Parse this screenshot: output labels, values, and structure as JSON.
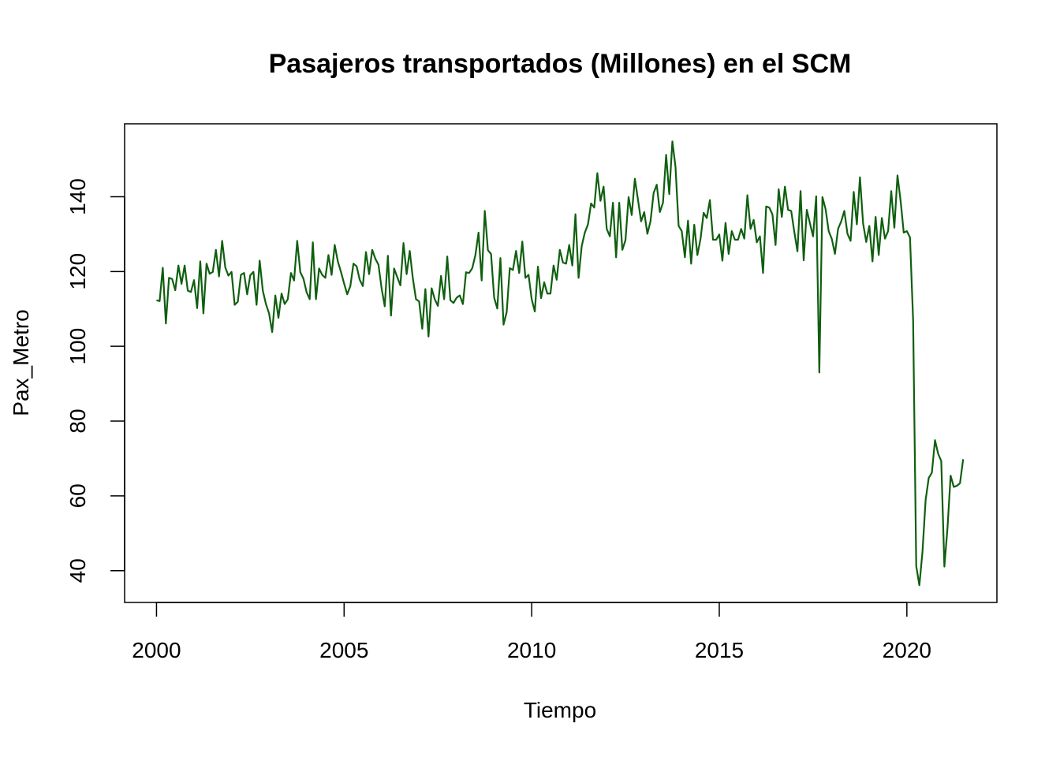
{
  "chart_data": {
    "type": "line",
    "title": "Pasajeros transportados (Millones) en el SCM",
    "xlabel": "Tiempo",
    "ylabel": "Pax_Metro",
    "xlim": [
      1999.15,
      2022.4
    ],
    "ylim": [
      31.5,
      159.5
    ],
    "x_ticks": [
      2000,
      2005,
      2010,
      2015,
      2020
    ],
    "y_ticks": [
      40,
      60,
      80,
      100,
      120,
      140
    ],
    "grid": false,
    "legend": "none",
    "line_color": "#0f5f0f",
    "frequency": 12,
    "start": [
      2000,
      1
    ],
    "series": [
      {
        "values": [
          112.3,
          112.1,
          121.0,
          106.1,
          118.3,
          118.0,
          115.0,
          121.6,
          116.7,
          121.6,
          114.9,
          114.5,
          117.7,
          110.2,
          122.7,
          108.8,
          122.1,
          119.4,
          119.9,
          125.8,
          118.7,
          128.2,
          121.1,
          118.9,
          119.9,
          111.1,
          111.9,
          119.1,
          119.6,
          113.9,
          119.0,
          119.9,
          111.1,
          122.9,
          114.9,
          111.3,
          108.8,
          103.8,
          113.6,
          107.6,
          114.1,
          111.3,
          112.6,
          119.6,
          117.6,
          128.2,
          119.8,
          118.1,
          114.5,
          112.6,
          127.8,
          112.6,
          120.8,
          119.1,
          118.3,
          124.4,
          119.1,
          127.1,
          122.7,
          119.9,
          116.8,
          113.9,
          116.1,
          122.1,
          121.4,
          117.8,
          116.1,
          125.2,
          119.3,
          125.8,
          123.4,
          121.8,
          115.5,
          110.7,
          124.2,
          108.2,
          120.8,
          118.5,
          116.3,
          127.6,
          119.3,
          125.5,
          118.1,
          112.6,
          112.0,
          104.7,
          115.3,
          102.6,
          115.5,
          112.6,
          110.8,
          118.8,
          112.6,
          124.0,
          112.3,
          111.6,
          113.0,
          113.6,
          111.3,
          119.8,
          119.6,
          120.9,
          124.4,
          130.4,
          117.6,
          136.2,
          125.7,
          124.7,
          113.0,
          110.1,
          123.6,
          105.8,
          109.1,
          120.9,
          120.4,
          125.5,
          119.6,
          128.0,
          118.3,
          119.1,
          112.6,
          109.3,
          121.3,
          112.9,
          117.1,
          114.1,
          114.1,
          121.6,
          117.8,
          125.8,
          122.4,
          122.1,
          127.1,
          121.6,
          135.3,
          118.3,
          126.8,
          130.4,
          132.6,
          138.2,
          137.1,
          146.3,
          138.9,
          142.7,
          131.4,
          129.4,
          138.4,
          123.8,
          138.4,
          125.8,
          128.4,
          139.9,
          135.1,
          144.8,
          139.2,
          133.4,
          135.9,
          130.1,
          133.4,
          141.0,
          143.2,
          135.9,
          138.4,
          151.2,
          140.7,
          154.8,
          148.0,
          132.2,
          130.8,
          123.8,
          133.6,
          122.1,
          132.5,
          124.4,
          128.7,
          135.7,
          134.3,
          139.1,
          128.5,
          128.5,
          129.9,
          122.9,
          133.0,
          124.7,
          130.8,
          128.5,
          128.5,
          131.4,
          128.8,
          140.4,
          131.4,
          133.8,
          127.8,
          129.4,
          119.6,
          137.4,
          137.1,
          135.3,
          127.1,
          142.0,
          134.6,
          142.7,
          136.5,
          136.2,
          130.6,
          125.4,
          141.5,
          123.0,
          136.5,
          132.9,
          129.4,
          140.1,
          93.0,
          139.9,
          136.7,
          130.8,
          128.7,
          124.7,
          131.4,
          133.4,
          136.2,
          130.1,
          128.2,
          141.3,
          132.6,
          145.2,
          132.9,
          127.9,
          132.2,
          122.7,
          134.6,
          124.4,
          134.3,
          128.8,
          130.8,
          141.5,
          131.7,
          145.7,
          138.9,
          130.4,
          130.8,
          129.1,
          107.0,
          41.2,
          36.1,
          45.1,
          58.9,
          64.8,
          66.2,
          74.9,
          71.3,
          69.3,
          41.1,
          51.5,
          65.4,
          62.4,
          62.7,
          63.4,
          69.8
        ]
      }
    ]
  }
}
